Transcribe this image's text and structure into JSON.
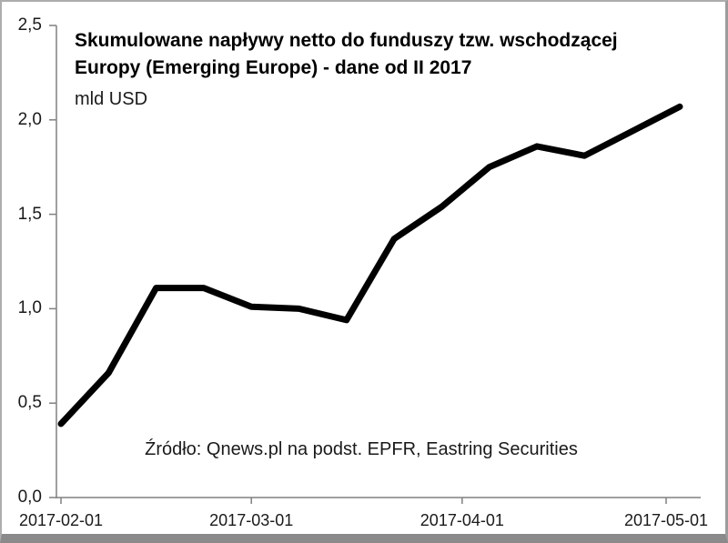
{
  "chart_data": {
    "type": "line",
    "title_line1": "Skumulowane napływy netto do funduszy tzw. wschodzącej",
    "title_line2": "Europy (Emerging Europe) - dane od II 2017",
    "subtitle": "mld USD",
    "source_note": "Źródło: Qnews.pl na podst. EPFR, Eastring Securities",
    "x": [
      "2017-02-01",
      "2017-02-08",
      "2017-02-15",
      "2017-02-22",
      "2017-03-01",
      "2017-03-08",
      "2017-03-15",
      "2017-03-22",
      "2017-03-29",
      "2017-04-05",
      "2017-04-12",
      "2017-04-19",
      "2017-04-26",
      "2017-05-03"
    ],
    "values": [
      0.39,
      0.66,
      1.11,
      1.11,
      1.01,
      1.0,
      0.94,
      1.37,
      1.54,
      1.75,
      1.86,
      1.81,
      1.94,
      2.07
    ],
    "ylim": [
      0,
      2.5
    ],
    "ytick_step": 0.5,
    "ytick_labels": [
      "0,0",
      "0,5",
      "1,0",
      "1,5",
      "2,0",
      "2,5"
    ],
    "xtick_labels": [
      "2017-02-01",
      "2017-03-01",
      "2017-04-01",
      "2017-05-01"
    ],
    "line_color": "#000000",
    "axis_color": "#808080",
    "label_color": "#1a1a1a",
    "grid": false,
    "legend": "none"
  },
  "frame": {
    "border_color": "#adadad",
    "bottom_border_color": "#8a8a8a",
    "background": "#ffffff"
  }
}
